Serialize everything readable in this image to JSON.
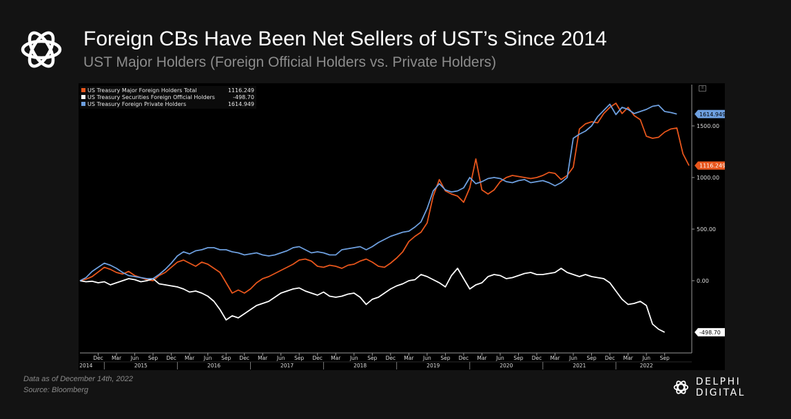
{
  "header": {
    "title": "Foreign CBs Have Been Net Sellers of UST’s Since 2014",
    "subtitle": "UST Major Holders (Foreign Official Holders vs. Private Holders)"
  },
  "footer": {
    "data_note": "Data as of December 14th, 2022",
    "source": "Source: Bloomberg",
    "brand": "DELPHI DIGITAL"
  },
  "colors": {
    "total": "#e8561c",
    "official": "#ffffff",
    "private": "#6ea0e0",
    "background": "#131313",
    "plot_background": "#000000"
  },
  "icons": [
    "delphi-logo-icon",
    "chart-options-icon"
  ],
  "chart_data": {
    "type": "line",
    "title": "",
    "xlabel": "",
    "ylabel": "",
    "ylim": [
      -700,
      1900
    ],
    "yticks": [
      0,
      500,
      1000,
      1500
    ],
    "ytick_labels": [
      "0.00",
      "500.00",
      "1000.00",
      "1500.00"
    ],
    "x_tick_labels": [
      "Dec",
      "Mar",
      "Jun",
      "Sep",
      "Dec",
      "Mar",
      "Jun",
      "Sep",
      "Dec",
      "Mar",
      "Jun",
      "Sep",
      "Dec",
      "Mar",
      "Jun",
      "Sep",
      "Dec",
      "Mar",
      "Jun",
      "Sep",
      "Dec",
      "Mar",
      "Jun",
      "Sep",
      "Dec",
      "Mar",
      "Jun",
      "Sep",
      "Dec",
      "Mar",
      "Jun",
      "Sep"
    ],
    "year_labels": [
      "2014",
      "2015",
      "2016",
      "2017",
      "2018",
      "2019",
      "2020",
      "2021",
      "2022"
    ],
    "x_start": "2014-09",
    "x_end": "2022-10",
    "grid": false,
    "legend_position": "top-left",
    "series": [
      {
        "name": "US Treasury Major Foreign Holders Total",
        "value_label": "1116.249",
        "color": "#e8561c",
        "values": [
          0,
          15,
          40,
          85,
          130,
          110,
          80,
          65,
          90,
          50,
          30,
          10,
          0,
          50,
          80,
          130,
          180,
          200,
          170,
          140,
          180,
          160,
          120,
          80,
          -20,
          -120,
          -90,
          -120,
          -80,
          -20,
          20,
          40,
          70,
          100,
          130,
          160,
          200,
          210,
          190,
          140,
          130,
          150,
          140,
          120,
          150,
          160,
          190,
          210,
          180,
          140,
          130,
          170,
          220,
          280,
          380,
          430,
          470,
          560,
          820,
          980,
          870,
          840,
          820,
          760,
          900,
          1180,
          880,
          840,
          880,
          960,
          1000,
          1020,
          1010,
          1000,
          990,
          1000,
          1020,
          1050,
          1040,
          980,
          1020,
          1100,
          1470,
          1520,
          1540,
          1530,
          1620,
          1680,
          1720,
          1620,
          1680,
          1600,
          1560,
          1400,
          1380,
          1390,
          1440,
          1470,
          1480,
          1230,
          1116
        ]
      },
      {
        "name": "US Treasury Securities Foreign Official Holders",
        "value_label": "-498.70",
        "color": "#ffffff",
        "values": [
          0,
          -10,
          -5,
          -20,
          -10,
          -40,
          -20,
          0,
          20,
          10,
          -10,
          0,
          20,
          -30,
          -40,
          -50,
          -60,
          -80,
          -110,
          -100,
          -120,
          -150,
          -200,
          -280,
          -380,
          -340,
          -360,
          -320,
          -280,
          -240,
          -220,
          -200,
          -160,
          -120,
          -100,
          -80,
          -70,
          -100,
          -120,
          -140,
          -110,
          -150,
          -160,
          -150,
          -130,
          -120,
          -160,
          -230,
          -180,
          -160,
          -120,
          -80,
          -50,
          -30,
          0,
          10,
          60,
          40,
          10,
          -20,
          -60,
          50,
          120,
          20,
          -80,
          -40,
          -20,
          40,
          60,
          50,
          20,
          30,
          50,
          70,
          80,
          60,
          60,
          70,
          80,
          120,
          80,
          60,
          40,
          60,
          40,
          30,
          20,
          -20,
          -100,
          -180,
          -230,
          -220,
          -200,
          -240,
          -420,
          -470,
          -499
        ]
      },
      {
        "name": "US Treasury Foreign Private Holders",
        "value_label": "1614.949",
        "color": "#6ea0e0",
        "values": [
          0,
          30,
          90,
          130,
          170,
          150,
          120,
          80,
          50,
          40,
          30,
          20,
          20,
          60,
          110,
          170,
          240,
          280,
          260,
          290,
          300,
          320,
          320,
          300,
          300,
          280,
          270,
          250,
          260,
          270,
          250,
          240,
          250,
          270,
          290,
          320,
          330,
          300,
          270,
          280,
          270,
          250,
          250,
          300,
          310,
          320,
          330,
          300,
          330,
          370,
          400,
          430,
          450,
          470,
          480,
          520,
          570,
          700,
          870,
          940,
          880,
          860,
          870,
          900,
          1000,
          940,
          960,
          990,
          1000,
          990,
          960,
          950,
          970,
          980,
          950,
          960,
          970,
          950,
          920,
          950,
          1000,
          1380,
          1420,
          1450,
          1500,
          1590,
          1650,
          1710,
          1610,
          1680,
          1660,
          1620,
          1640,
          1660,
          1690,
          1700,
          1640,
          1630,
          1615
        ]
      }
    ]
  }
}
